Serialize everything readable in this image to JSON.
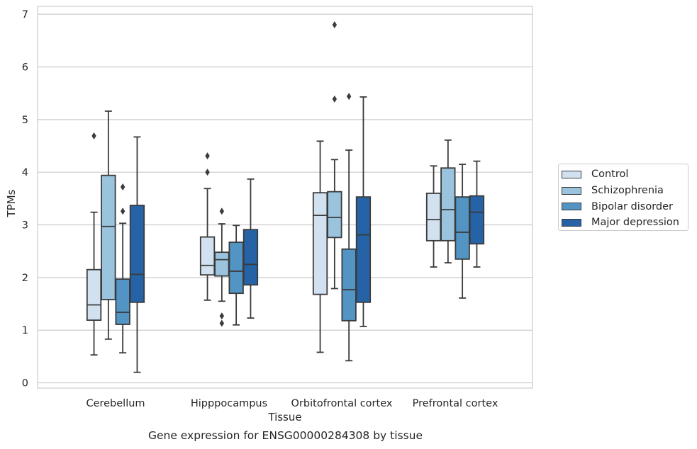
{
  "chart_data": {
    "type": "boxplot",
    "xlabel": "Tissue",
    "ylabel": "TPMs",
    "caption": "Gene expression for ENSG00000284308 by tissue",
    "ylim": [
      0,
      7
    ],
    "yticks": [
      0,
      1,
      2,
      3,
      4,
      5,
      6,
      7
    ],
    "grid": "horizontal",
    "legend_placement": "right",
    "categories": [
      "Cerebellum",
      "Hipppocampus",
      "Orbitofrontal cortex",
      "Prefrontal cortex"
    ],
    "series": [
      {
        "name": "Control",
        "color": "#d1e1f0",
        "boxes": [
          {
            "whislo": 0.53,
            "q1": 1.19,
            "med": 1.48,
            "q3": 2.15,
            "whishi": 3.24,
            "fliers": [
              4.69
            ]
          },
          {
            "whislo": 1.57,
            "q1": 2.05,
            "med": 2.23,
            "q3": 2.77,
            "whishi": 3.69,
            "fliers": [
              4.0,
              4.31
            ]
          },
          {
            "whislo": 0.58,
            "q1": 1.68,
            "med": 3.18,
            "q3": 3.61,
            "whishi": 4.59,
            "fliers": []
          },
          {
            "whislo": 2.2,
            "q1": 2.7,
            "med": 3.1,
            "q3": 3.6,
            "whishi": 4.12,
            "fliers": []
          }
        ]
      },
      {
        "name": "Schizophrenia",
        "color": "#9ac3de",
        "boxes": [
          {
            "whislo": 0.83,
            "q1": 1.58,
            "med": 2.97,
            "q3": 3.94,
            "whishi": 5.16,
            "fliers": []
          },
          {
            "whislo": 1.55,
            "q1": 2.03,
            "med": 2.34,
            "q3": 2.48,
            "whishi": 3.02,
            "fliers": [
              1.13,
              1.27,
              3.26
            ]
          },
          {
            "whislo": 1.79,
            "q1": 2.76,
            "med": 3.14,
            "q3": 3.63,
            "whishi": 4.24,
            "fliers": [
              5.39,
              6.8
            ]
          },
          {
            "whislo": 2.28,
            "q1": 2.7,
            "med": 3.29,
            "q3": 4.08,
            "whishi": 4.61,
            "fliers": []
          }
        ]
      },
      {
        "name": "Bipolar disorder",
        "color": "#5294c4",
        "boxes": [
          {
            "whislo": 0.57,
            "q1": 1.11,
            "med": 1.34,
            "q3": 1.97,
            "whishi": 3.03,
            "fliers": [
              3.26,
              3.72
            ]
          },
          {
            "whislo": 1.1,
            "q1": 1.7,
            "med": 2.12,
            "q3": 2.67,
            "whishi": 2.99,
            "fliers": []
          },
          {
            "whislo": 0.42,
            "q1": 1.18,
            "med": 1.77,
            "q3": 2.54,
            "whishi": 4.42,
            "fliers": [
              5.44
            ]
          },
          {
            "whislo": 1.61,
            "q1": 2.35,
            "med": 2.86,
            "q3": 3.53,
            "whishi": 4.15,
            "fliers": []
          }
        ]
      },
      {
        "name": "Major depression",
        "color": "#2563a6",
        "boxes": [
          {
            "whislo": 0.2,
            "q1": 1.53,
            "med": 2.06,
            "q3": 3.37,
            "whishi": 4.67,
            "fliers": []
          },
          {
            "whislo": 1.23,
            "q1": 1.86,
            "med": 2.25,
            "q3": 2.91,
            "whishi": 3.87,
            "fliers": []
          },
          {
            "whislo": 1.07,
            "q1": 1.53,
            "med": 2.81,
            "q3": 3.53,
            "whishi": 5.43,
            "fliers": []
          },
          {
            "whislo": 2.2,
            "q1": 2.64,
            "med": 3.24,
            "q3": 3.55,
            "whishi": 4.21,
            "fliers": []
          }
        ]
      }
    ]
  }
}
